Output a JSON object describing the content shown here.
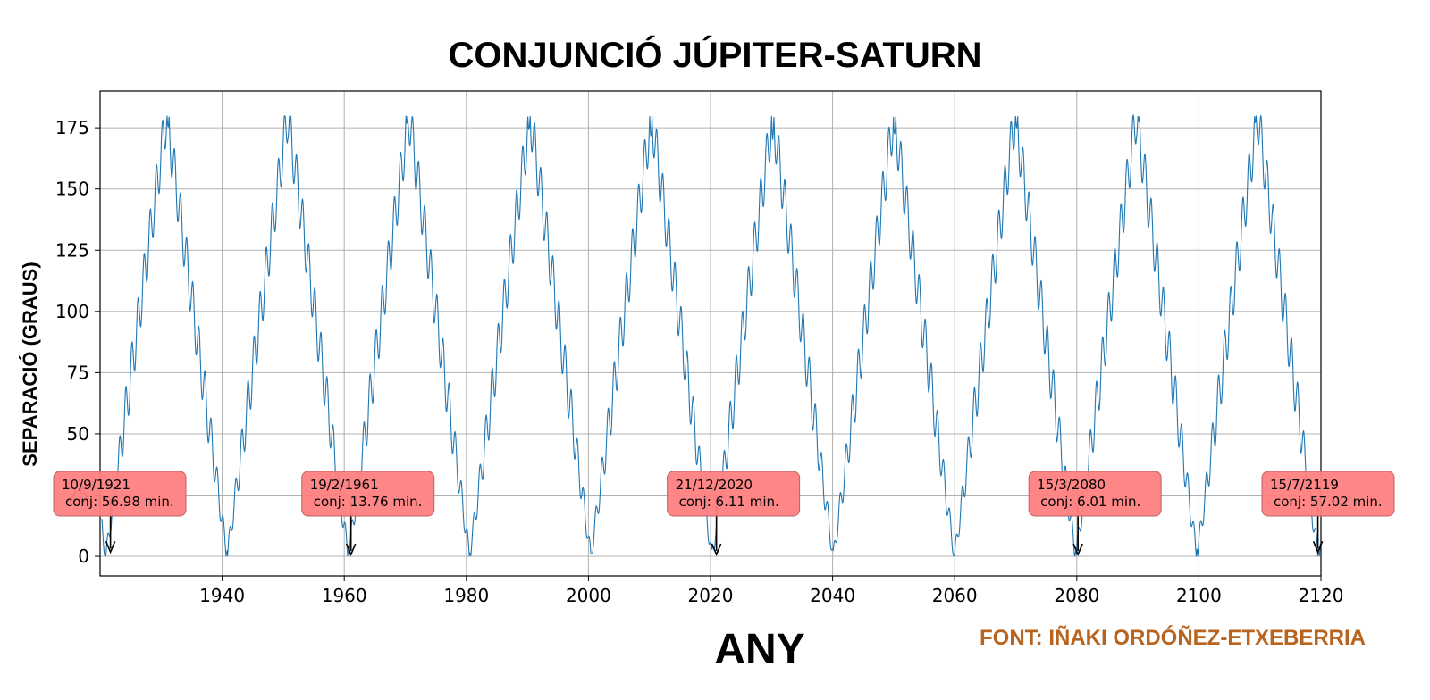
{
  "chart_data": {
    "type": "line",
    "title": "CONJUNCIÓ JÚPITER-SATURN",
    "xlabel": "ANY",
    "ylabel": "SEPARACIÓ (GRAUS)",
    "xlim": [
      1920,
      2120
    ],
    "ylim": [
      -8,
      190
    ],
    "xticks": [
      1940,
      1960,
      1980,
      2000,
      2020,
      2040,
      2060,
      2080,
      2100,
      2120
    ],
    "yticks": [
      0,
      25,
      50,
      75,
      100,
      125,
      150,
      175
    ],
    "grid": true,
    "line_color": "#1f77b4",
    "model": {
      "synodic_period_years": 19.86,
      "first_conjunction_year": 1920.95,
      "max_separation": 180,
      "ripple_period_years": 1.0,
      "ripple_amplitude": 10
    },
    "series": [
      {
        "x": [
          1920.95,
          1930.88,
          1940.81,
          1950.74,
          1960.67,
          1970.6,
          1980.53,
          1990.46,
          2000.39,
          2010.32,
          2020.25,
          2030.18,
          2040.11,
          2050.04,
          2059.97,
          2069.9,
          2079.83,
          2089.76,
          2099.69,
          2109.62,
          2119.55
        ],
        "y": [
          0,
          180,
          0,
          180,
          0,
          180,
          0,
          180,
          0,
          180,
          0,
          180,
          0,
          180,
          0,
          180,
          0,
          180,
          0,
          180,
          0
        ]
      }
    ],
    "annotations": [
      {
        "date": "10/9/1921",
        "text": "conj: 56.98 min.",
        "x": 1921.7,
        "y": 1
      },
      {
        "date": "19/2/1961",
        "text": "conj: 13.76 min.",
        "x": 1961.1,
        "y": 0
      },
      {
        "date": "21/12/2020",
        "text": "conj: 6.11 min.",
        "x": 2020.97,
        "y": 0
      },
      {
        "date": "15/3/2080",
        "text": "conj: 6.01 min.",
        "x": 2080.2,
        "y": 0
      },
      {
        "date": "15/7/2119",
        "text": "conj: 57.02 min.",
        "x": 2119.5,
        "y": 1
      }
    ],
    "annotation_color": "#ff7f7f"
  },
  "source": "FONT: IÑAKI ORDÓÑEZ-ETXEBERRIA"
}
